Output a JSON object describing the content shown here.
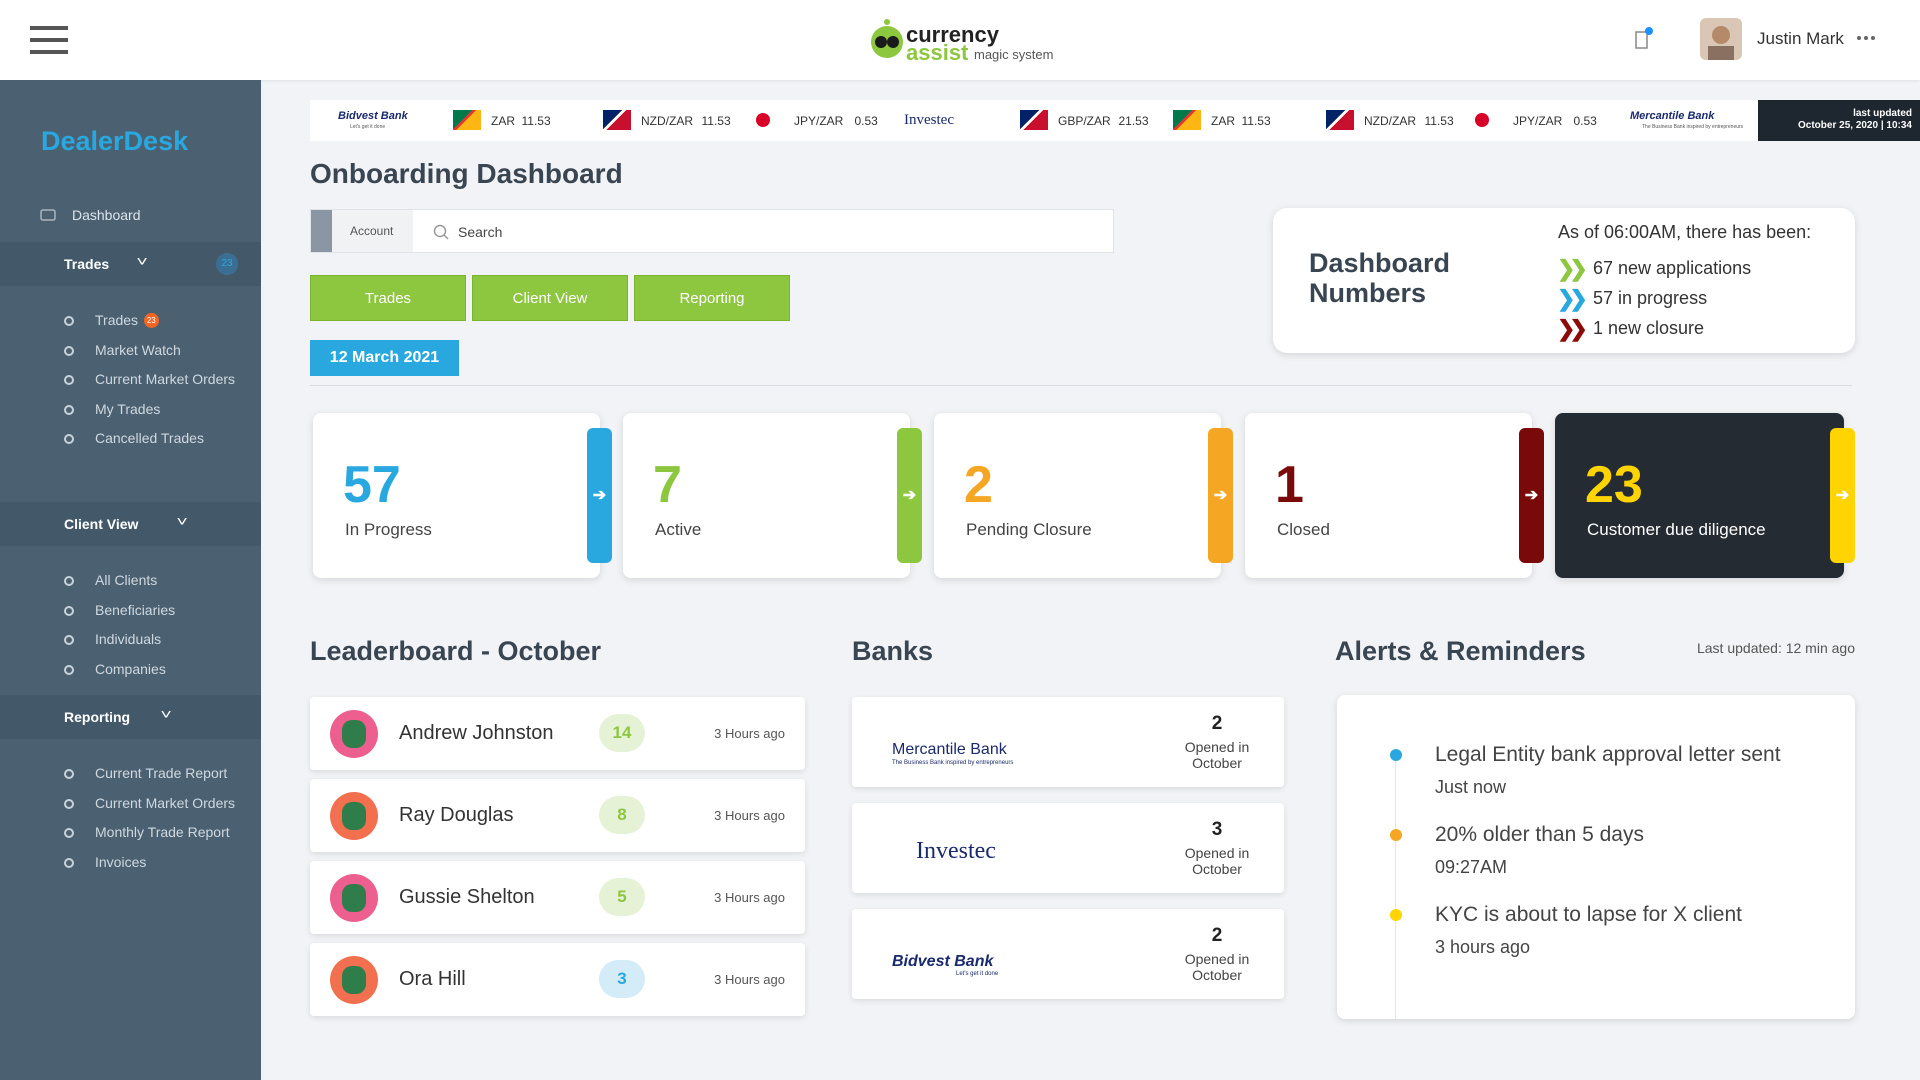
{
  "header": {
    "logo_line1": "currency",
    "logo_line2": "assist",
    "logo_tagline": "magic system",
    "user_name": "Justin Mark"
  },
  "sidebar": {
    "brand": "DealerDesk",
    "dashboard": "Dashboard",
    "sections": [
      {
        "title": "Trades",
        "badge": "23",
        "items": [
          {
            "label": "Trades",
            "badge": "23"
          },
          {
            "label": "Market Watch"
          },
          {
            "label": "Current Market Orders"
          },
          {
            "label": "My Trades"
          },
          {
            "label": "Cancelled Trades"
          }
        ]
      },
      {
        "title": "Client View",
        "items": [
          {
            "label": "All Clients"
          },
          {
            "label": "Beneficiaries"
          },
          {
            "label": "Individuals"
          },
          {
            "label": "Companies"
          }
        ]
      },
      {
        "title": "Reporting",
        "items": [
          {
            "label": "Current Trade Report"
          },
          {
            "label": "Current Market Orders"
          },
          {
            "label": "Monthly Trade Report"
          },
          {
            "label": "Invoices"
          }
        ]
      }
    ]
  },
  "ticker": {
    "items": [
      {
        "bank": "Bidvest Bank",
        "tagline": "Let's get it done"
      },
      {
        "pair": "ZAR",
        "rate": "11.53",
        "flag": [
          "#007a4d",
          "#ffb612",
          "#de3831"
        ]
      },
      {
        "pair": "NZD/ZAR",
        "rate": "11.53",
        "flag": [
          "#012169",
          "#c8102e",
          "#ffffff"
        ]
      },
      {
        "pair": "JPY/ZAR",
        "rate": "0.53",
        "flag": [
          "#d80027"
        ]
      },
      {
        "bank": "Investec"
      },
      {
        "pair": "GBP/ZAR",
        "rate": "21.53",
        "flag": [
          "#012169",
          "#c8102e",
          "#ffffff"
        ]
      },
      {
        "pair": "ZAR",
        "rate": "11.53",
        "flag": [
          "#007a4d",
          "#ffb612",
          "#de3831"
        ]
      },
      {
        "pair": "NZD/ZAR",
        "rate": "11.53",
        "flag": [
          "#012169",
          "#c8102e",
          "#ffffff"
        ]
      },
      {
        "pair": "JPY/ZAR",
        "rate": "0.53",
        "flag": [
          "#d80027"
        ]
      },
      {
        "bank": "Mercantile Bank",
        "tagline": "The Business Bank inspired by entrepreneurs"
      }
    ],
    "last_updated_label": "last updated",
    "last_updated": "October 25, 2020 | 10:34"
  },
  "main": {
    "title": "Onboarding Dashboard",
    "search": {
      "filter": "Account",
      "placeholder": "Search"
    },
    "tabs": [
      "Trades",
      "Client View",
      "Reporting"
    ],
    "date": "12 March 2021",
    "numbers": {
      "title": "Dashboard Numbers",
      "intro": "As of 06:00AM, there has been:",
      "items": [
        {
          "text": "67 new applications",
          "color": "#8dc63f"
        },
        {
          "text": "57 in progress",
          "color": "#29a8e0"
        },
        {
          "text": "1 new closure",
          "color": "#8b0a0a"
        }
      ]
    },
    "stats": [
      {
        "value": 57,
        "label": "In Progress",
        "color": "#29a8e0"
      },
      {
        "value": 7,
        "label": "Active",
        "color": "#8dc63f"
      },
      {
        "value": 2,
        "label": "Pending Closure",
        "color": "#f5a623"
      },
      {
        "value": 1,
        "label": "Closed",
        "color": "#7a0a0a"
      },
      {
        "value": 23,
        "label": "Customer due diligence",
        "color": "#ffd400",
        "dark": true
      }
    ]
  },
  "leaderboard": {
    "title": "Leaderboard - October",
    "rows": [
      {
        "name": "Andrew Johnston",
        "score": 14,
        "time": "3 Hours ago",
        "color": "#8dc63f"
      },
      {
        "name": "Ray Douglas",
        "score": 8,
        "time": "3 Hours ago",
        "color": "#8dc63f"
      },
      {
        "name": "Gussie Shelton",
        "score": 5,
        "time": "3 Hours ago",
        "color": "#8dc63f"
      },
      {
        "name": "Ora Hill",
        "score": 3,
        "time": "3 Hours ago",
        "color": "#29a8e0"
      }
    ]
  },
  "banks": {
    "title": "Banks",
    "rows": [
      {
        "name": "Mercantile Bank",
        "tagline": "The Business Bank inspired by entrepreneurs",
        "count": 2,
        "label": "Opened in October"
      },
      {
        "name": "Investec",
        "count": 3,
        "label": "Opened in October"
      },
      {
        "name": "Bidvest Bank",
        "tagline": "Let's get it done",
        "count": 2,
        "label": "Opened in October"
      }
    ]
  },
  "alerts": {
    "title": "Alerts & Reminders",
    "updated": "Last updated: 12 min ago",
    "items": [
      {
        "text": "Legal Entity bank approval letter sent",
        "time": "Just now",
        "color": "#29a8e0"
      },
      {
        "text": "20% older than 5 days",
        "time": "09:27AM",
        "color": "#f5a623"
      },
      {
        "text": "KYC is about to lapse for X client",
        "time": "3 hours ago",
        "color": "#ffd400"
      }
    ]
  }
}
